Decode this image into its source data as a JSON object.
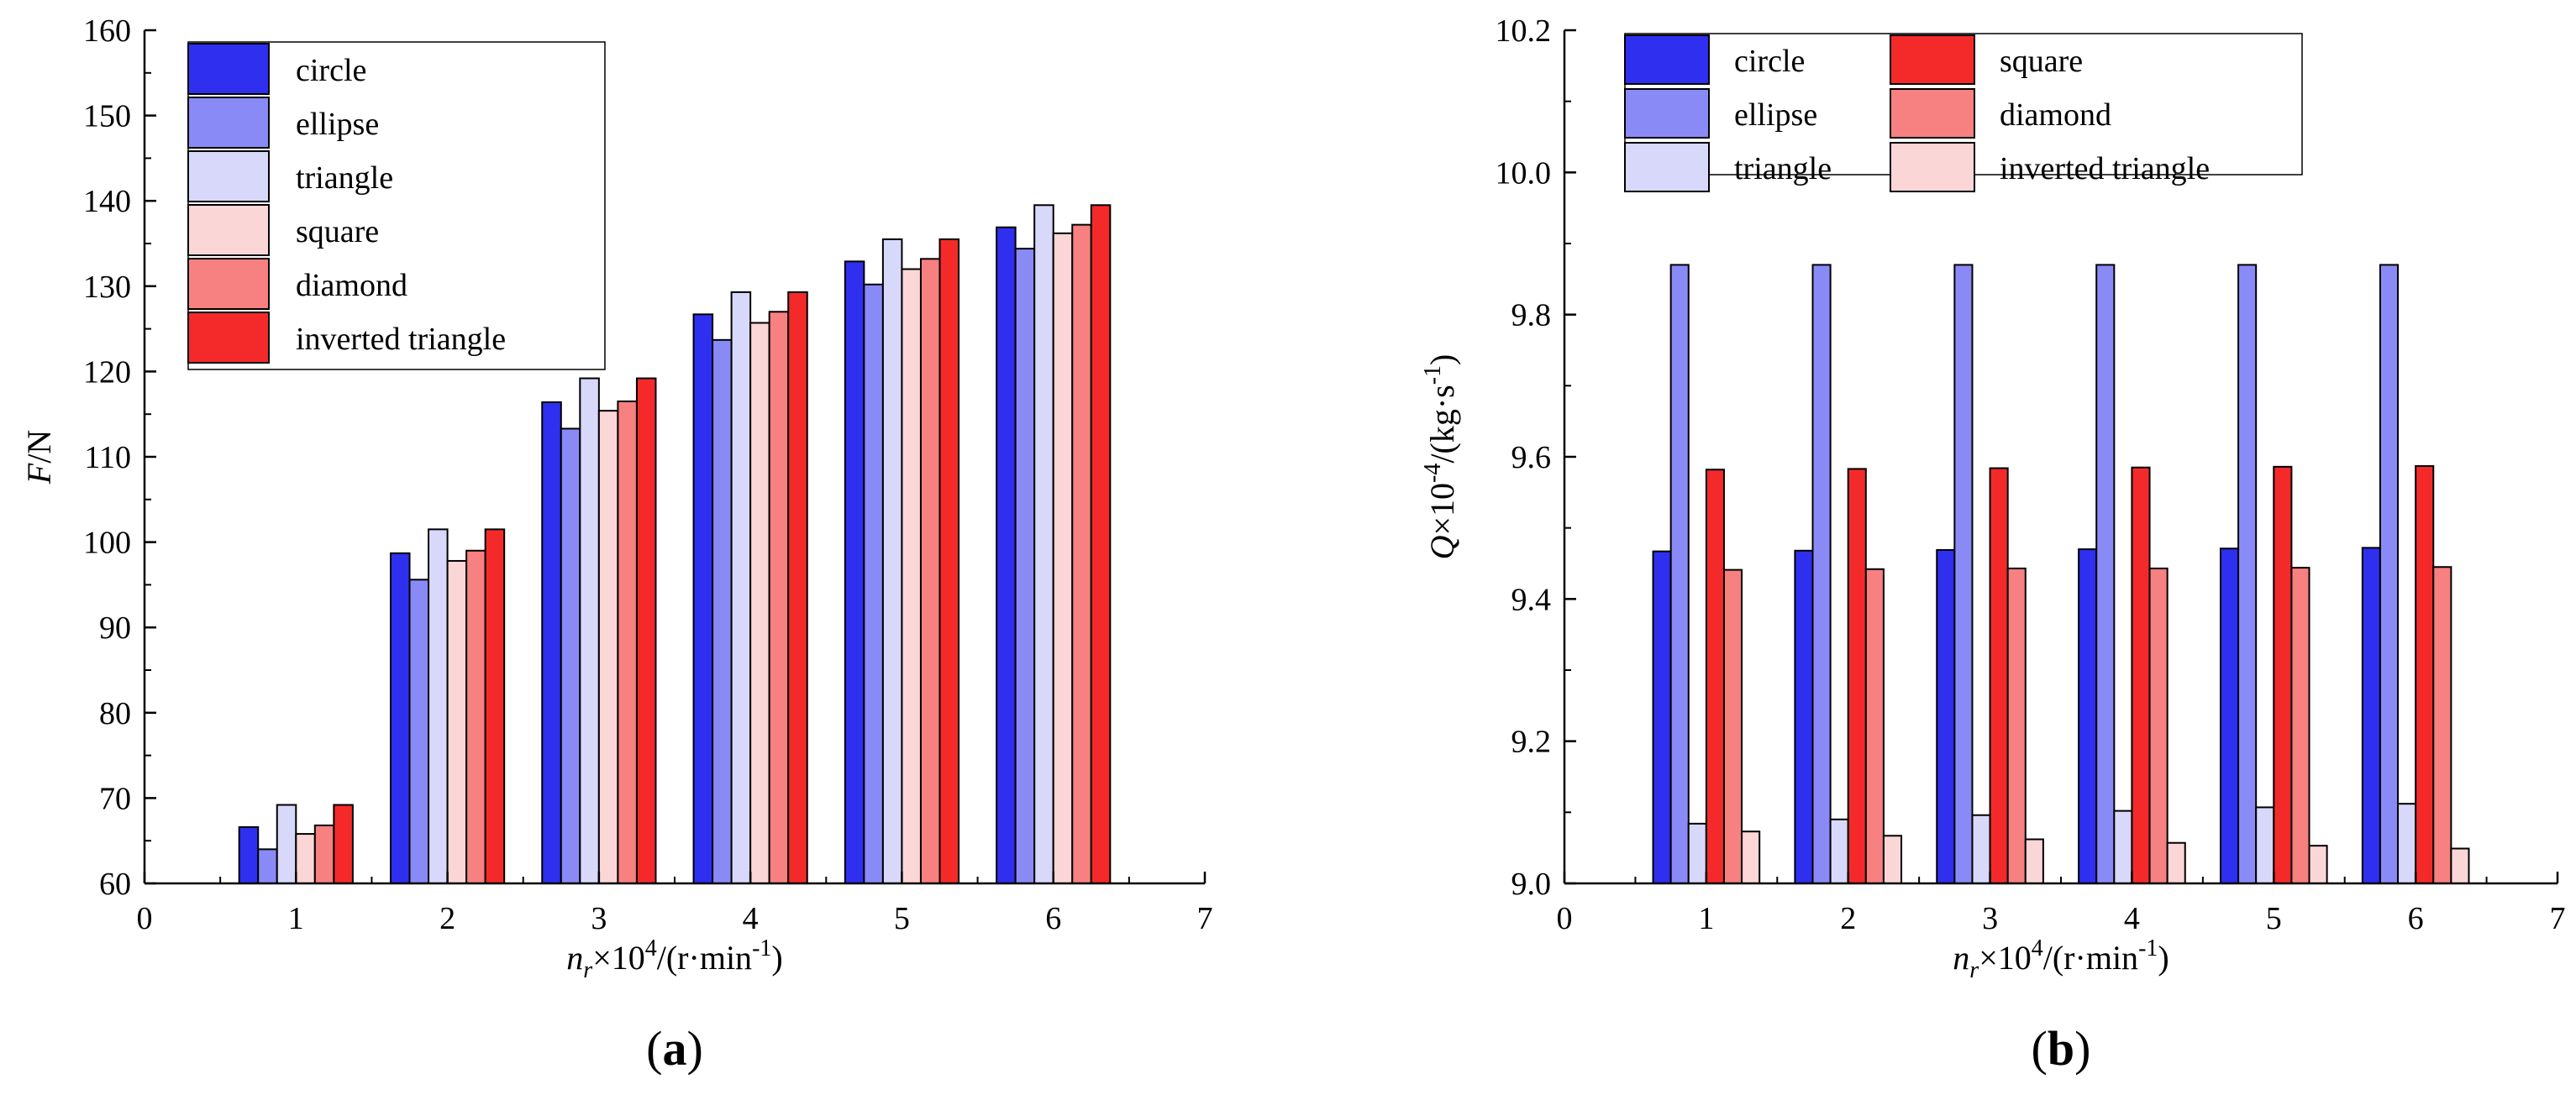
{
  "chart_data": [
    {
      "type": "bar",
      "panel_label": "a",
      "ylabel_var": "F",
      "ylabel_unit": "/N",
      "xlabel_var": "n",
      "xlabel_sub": "r",
      "xlabel_mid": "×10",
      "xlabel_exp": "4",
      "xlabel_unit_a": "/(r·min",
      "xlabel_unit_exp": "-1",
      "xlabel_unit_b": ")",
      "xlim": [
        0,
        7
      ],
      "ylim": [
        60,
        160
      ],
      "xticks": [
        0,
        1,
        2,
        3,
        4,
        5,
        6,
        7
      ],
      "yticks": [
        60,
        70,
        80,
        90,
        100,
        110,
        120,
        130,
        140,
        150,
        160
      ],
      "tick_decimals": 0,
      "categories": [
        1,
        2,
        3,
        4,
        5,
        6
      ],
      "legend_position": "top-left",
      "series": [
        {
          "name": "circle",
          "color": "#2f2ff0",
          "values": [
            66.6,
            98.7,
            116.4,
            126.7,
            132.9,
            136.9
          ]
        },
        {
          "name": "ellipse",
          "color": "#8a8af7",
          "values": [
            64.0,
            95.6,
            113.3,
            123.7,
            130.2,
            134.4
          ]
        },
        {
          "name": "triangle",
          "color": "#d8d8fb",
          "values": [
            69.2,
            101.5,
            119.2,
            129.3,
            135.5,
            139.5
          ]
        },
        {
          "name": "square",
          "color": "#fbd6d6",
          "values": [
            65.8,
            97.8,
            115.4,
            125.7,
            132.0,
            136.2
          ]
        },
        {
          "name": "diamond",
          "color": "#f78080",
          "values": [
            66.8,
            99.0,
            116.5,
            127.0,
            133.2,
            137.2
          ]
        },
        {
          "name": "inverted triangle",
          "color": "#f42a2a",
          "values": [
            69.2,
            101.5,
            119.2,
            129.3,
            135.5,
            139.5
          ]
        }
      ]
    },
    {
      "type": "bar",
      "panel_label": "b",
      "ylabel_var": "Q",
      "ylabel_mid": "×10",
      "ylabel_exp": "-4",
      "ylabel_unit_a": "/(kg·s",
      "ylabel_unit_exp": "-1",
      "ylabel_unit_b": ")",
      "xlabel_var": "n",
      "xlabel_sub": "r",
      "xlabel_mid": "×10",
      "xlabel_exp": "4",
      "xlabel_unit_a": "/(r·min",
      "xlabel_unit_exp": "-1",
      "xlabel_unit_b": ")",
      "xlim": [
        0,
        7
      ],
      "ylim": [
        9.0,
        10.2
      ],
      "xticks": [
        0,
        1,
        2,
        3,
        4,
        5,
        6,
        7
      ],
      "yticks": [
        9.0,
        9.2,
        9.4,
        9.6,
        9.8,
        10.0,
        10.2
      ],
      "tick_decimals": 1,
      "categories": [
        1,
        2,
        3,
        4,
        5,
        6
      ],
      "legend_position": "top",
      "series": [
        {
          "name": "circle",
          "color": "#2f2ff0",
          "values": [
            9.467,
            9.468,
            9.469,
            9.47,
            9.471,
            9.472
          ]
        },
        {
          "name": "ellipse",
          "color": "#8a8af7",
          "values": [
            9.87,
            9.87,
            9.87,
            9.87,
            9.87,
            9.87
          ]
        },
        {
          "name": "triangle",
          "color": "#d8d8fb",
          "values": [
            9.084,
            9.09,
            9.096,
            9.102,
            9.107,
            9.112
          ]
        },
        {
          "name": "square",
          "color": "#f42a2a",
          "values": [
            9.582,
            9.583,
            9.584,
            9.585,
            9.586,
            9.587
          ]
        },
        {
          "name": "diamond",
          "color": "#f78080",
          "values": [
            9.441,
            9.442,
            9.443,
            9.443,
            9.444,
            9.445
          ]
        },
        {
          "name": "inverted triangle",
          "color": "#fbd6d6",
          "values": [
            9.073,
            9.067,
            9.062,
            9.057,
            9.053,
            9.049
          ]
        }
      ]
    }
  ]
}
